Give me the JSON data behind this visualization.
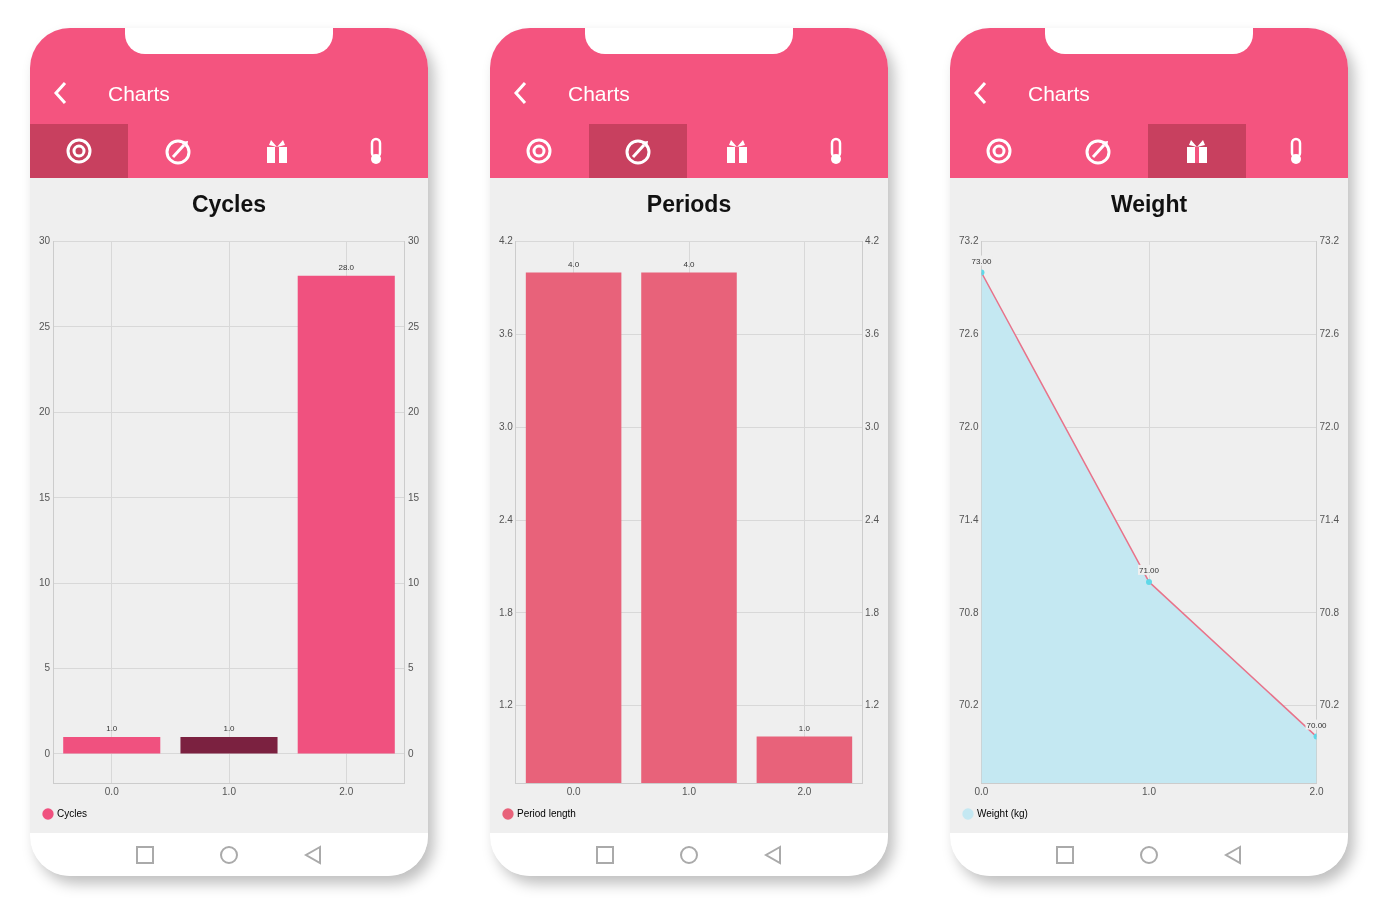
{
  "chart_data": [
    {
      "type": "bar",
      "title": "Cycles",
      "annotations": [
        "Charts"
      ],
      "categories": [
        "0.0",
        "1.0",
        "2.0"
      ],
      "series": [
        {
          "name": "Cycles",
          "colors": [
            "#f0517f",
            "#7b2140",
            "#f0517f"
          ],
          "values": [
            1,
            1,
            28
          ],
          "value_labels": [
            "1.0",
            "1.0",
            "28.0"
          ]
        }
      ],
      "ylim": [
        -1.7,
        30
      ],
      "yticks": [
        0,
        5,
        10,
        15,
        20,
        25,
        30
      ],
      "y2lim": [
        -1.7,
        30
      ],
      "y2ticks": [
        0,
        5,
        10,
        15,
        20,
        25,
        30
      ],
      "grid": true,
      "legend": "bottom left"
    },
    {
      "type": "bar",
      "title": "Periods",
      "annotations": [
        "Charts"
      ],
      "categories": [
        "0.0",
        "1.0",
        "2.0"
      ],
      "series": [
        {
          "name": "Period length",
          "color": "#e8627a",
          "values": [
            4,
            4,
            1
          ],
          "value_labels": [
            "4.0",
            "4.0",
            "1.0"
          ]
        }
      ],
      "ylim": [
        0.7,
        4.2
      ],
      "yticks": [
        1.2,
        1.8,
        2.4,
        {
          "value": 3,
          "label": "3.0"
        },
        3.6,
        4.2
      ],
      "y2lim": [
        0.7,
        4.2
      ],
      "y2ticks": [
        1.2,
        1.8,
        2.4,
        {
          "value": 3,
          "label": "3.0"
        },
        3.6,
        4.2
      ],
      "grid": true,
      "legend": "bottom left"
    },
    {
      "type": "area",
      "title": "Weight",
      "annotations": [
        "Charts"
      ],
      "x": [
        0,
        1,
        2
      ],
      "xlim": [
        0,
        2
      ],
      "xticks": [
        {
          "value": 0,
          "label": "0.0"
        },
        {
          "value": 1,
          "label": "1.0"
        },
        {
          "value": 2,
          "label": "2.0"
        }
      ],
      "series": [
        {
          "name": "Weight (kg)",
          "color": "#c4e8f2",
          "values": [
            73,
            71,
            70
          ],
          "value_labels": [
            "73.00",
            "71.00",
            "70.00"
          ]
        }
      ],
      "ylim": [
        69.7,
        73.2
      ],
      "yticks": [
        70.2,
        70.8,
        71.4,
        {
          "value": 72,
          "label": "72.0"
        },
        72.6,
        73.2
      ],
      "y2lim": [
        69.7,
        73.2
      ],
      "y2ticks": [
        70.2,
        70.8,
        71.4,
        {
          "value": 72,
          "label": "72.0"
        },
        72.6,
        73.2
      ],
      "grid": true,
      "legend": "bottom left",
      "marker": "circle",
      "line_style": "solid"
    }
  ]
}
